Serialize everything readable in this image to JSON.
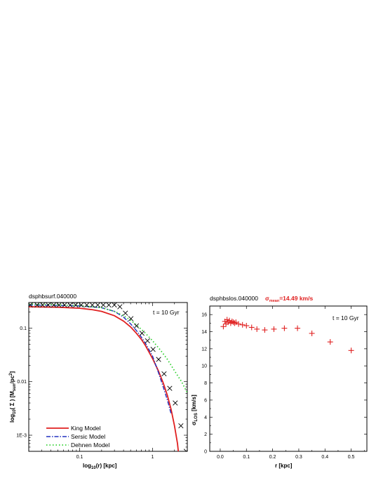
{
  "chart_data": [
    {
      "type": "line",
      "header": "dsphbsurf.040000",
      "annotation": "t = 10 Gyr",
      "xlabel_main": "log",
      "xlabel_sub": "10",
      "xlabel_tail": "(r) [kpc]",
      "ylabel_a": "log",
      "ylabel_b": "10",
      "ylabel_c": "( Σ ) [M",
      "ylabel_d": "sun",
      "ylabel_e": "/pc",
      "ylabel_f": "2",
      "ylabel_g": "]",
      "xscale": "log",
      "yscale": "log",
      "xlim": [
        0.02,
        3.0
      ],
      "ylim": [
        0.0005,
        0.3
      ],
      "xticks": [
        {
          "v": 0.1,
          "label": "0.1"
        },
        {
          "v": 1,
          "label": "1"
        }
      ],
      "yticks": [
        {
          "v": 0.001,
          "label": "1E-3"
        },
        {
          "v": 0.01,
          "label": "0.01"
        },
        {
          "v": 0.1,
          "label": "0.1"
        }
      ],
      "legend_position": "bottom-left",
      "series": [
        {
          "name": "King Model",
          "style": "solid",
          "color": "#e02020",
          "x": [
            0.02,
            0.05,
            0.1,
            0.15,
            0.2,
            0.3,
            0.4,
            0.5,
            0.6,
            0.7,
            0.8,
            1.0,
            1.2,
            1.4,
            1.6,
            1.8,
            2.0,
            2.2,
            2.35
          ],
          "y": [
            0.25,
            0.245,
            0.235,
            0.22,
            0.205,
            0.17,
            0.135,
            0.105,
            0.08,
            0.062,
            0.047,
            0.027,
            0.016,
            0.0095,
            0.0055,
            0.003,
            0.0015,
            0.0007,
            0.0003
          ]
        },
        {
          "name": "Sersic Model",
          "style": "dashdot",
          "color": "#2030c0",
          "x": [
            0.02,
            0.05,
            0.1,
            0.2,
            0.3,
            0.4,
            0.5,
            0.6,
            0.7,
            0.8,
            1.0,
            1.2,
            1.4,
            1.6,
            1.8
          ],
          "y": [
            0.27,
            0.265,
            0.26,
            0.24,
            0.205,
            0.16,
            0.12,
            0.09,
            0.068,
            0.052,
            0.03,
            0.015,
            0.008,
            0.0045,
            0.0025
          ]
        },
        {
          "name": "Dehnen Model",
          "style": "dotted",
          "color": "#30d030",
          "x": [
            0.02,
            0.05,
            0.1,
            0.2,
            0.3,
            0.4,
            0.5,
            0.6,
            0.8,
            1.0,
            1.3,
            1.6,
            2.0,
            2.5,
            3.0
          ],
          "y": [
            0.28,
            0.272,
            0.262,
            0.24,
            0.205,
            0.17,
            0.14,
            0.115,
            0.08,
            0.058,
            0.038,
            0.026,
            0.016,
            0.01,
            0.0062
          ]
        },
        {
          "name": "",
          "style": "markers-x",
          "color": "#000000",
          "x": [
            0.021,
            0.026,
            0.031,
            0.037,
            0.044,
            0.052,
            0.062,
            0.074,
            0.088,
            0.105,
            0.125,
            0.149,
            0.177,
            0.211,
            0.251,
            0.299,
            0.356,
            0.424,
            0.505,
            0.601,
            0.716,
            0.853,
            1.016,
            1.21,
            1.44,
            1.72,
            2.05,
            2.45,
            2.9
          ],
          "y": [
            0.27,
            0.27,
            0.27,
            0.27,
            0.27,
            0.27,
            0.27,
            0.27,
            0.27,
            0.27,
            0.27,
            0.27,
            0.27,
            0.27,
            0.27,
            0.27,
            0.25,
            0.19,
            0.15,
            0.11,
            0.08,
            0.058,
            0.04,
            0.026,
            0.014,
            0.0075,
            0.004,
            0.0015,
            0.0005
          ]
        }
      ]
    },
    {
      "type": "scatter",
      "header": "dsphbslos.040000",
      "header_sigma": "σ",
      "header_sub": "mean",
      "header_value": "=14.49 km/s",
      "annotation": "t = 10 Gyr",
      "xlabel": "r [kpc]",
      "ylabel_main": "σ",
      "ylabel_sub": "LOS",
      "ylabel_tail": " [km/s]",
      "xlim": [
        -0.04,
        0.56
      ],
      "ylim": [
        0,
        17
      ],
      "xticks": [
        {
          "v": 0.0,
          "label": "0.0"
        },
        {
          "v": 0.1,
          "label": "0.1"
        },
        {
          "v": 0.2,
          "label": "0.2"
        },
        {
          "v": 0.3,
          "label": "0.3"
        },
        {
          "v": 0.4,
          "label": "0.4"
        },
        {
          "v": 0.5,
          "label": "0.5"
        }
      ],
      "yticks": [
        {
          "v": 0,
          "label": "0"
        },
        {
          "v": 2,
          "label": "2"
        },
        {
          "v": 4,
          "label": "4"
        },
        {
          "v": 6,
          "label": "6"
        },
        {
          "v": 8,
          "label": "8"
        },
        {
          "v": 10,
          "label": "10"
        },
        {
          "v": 12,
          "label": "12"
        },
        {
          "v": 14,
          "label": "14"
        },
        {
          "v": 16,
          "label": "16"
        }
      ],
      "series": [
        {
          "name": "",
          "color": "#e02020",
          "x": [
            0.012,
            0.018,
            0.022,
            0.026,
            0.03,
            0.035,
            0.04,
            0.045,
            0.05,
            0.055,
            0.06,
            0.07,
            0.085,
            0.1,
            0.12,
            0.14,
            0.17,
            0.205,
            0.245,
            0.295,
            0.35,
            0.42,
            0.5
          ],
          "y": [
            14.6,
            15.2,
            14.9,
            15.4,
            15.1,
            15.3,
            15.0,
            15.2,
            15.1,
            15.0,
            15.1,
            14.9,
            14.8,
            14.7,
            14.5,
            14.3,
            14.2,
            14.3,
            14.4,
            14.4,
            13.8,
            12.8,
            11.8
          ]
        }
      ]
    }
  ]
}
